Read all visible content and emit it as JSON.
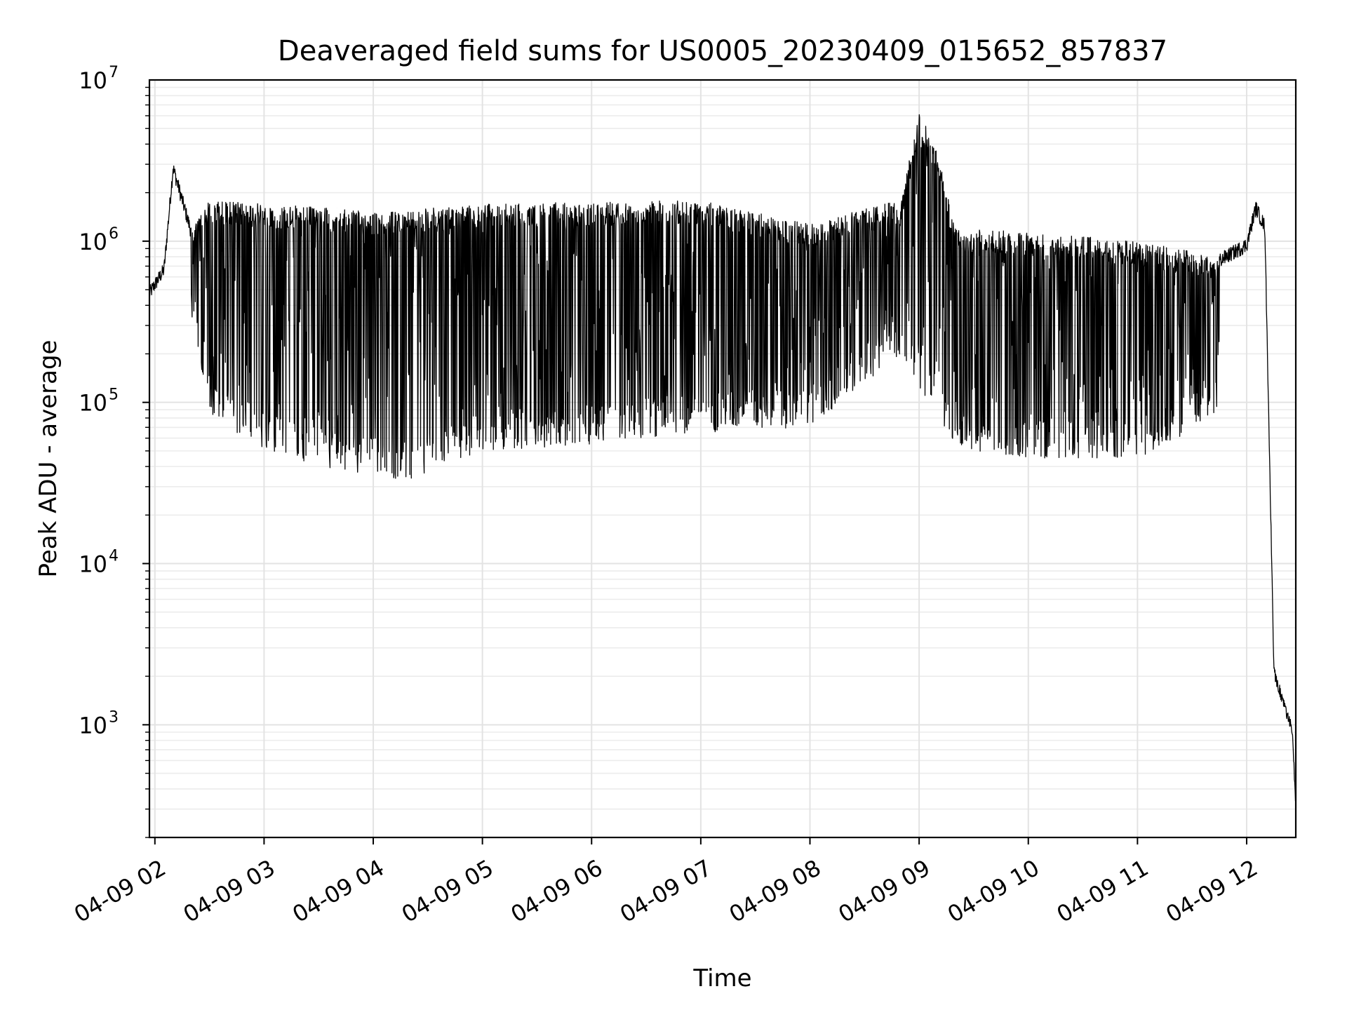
{
  "chart_data": {
    "type": "line",
    "title": "Deaveraged field sums for US0005_20230409_015652_857837",
    "xlabel": "Time",
    "ylabel": "Peak ADU - average",
    "yscale": "log",
    "ylim": [
      200,
      10000000
    ],
    "xlim": [
      "04-09 01:57",
      "04-09 12:27"
    ],
    "grid": true,
    "x_tick_labels": [
      "04-09 02",
      "04-09 03",
      "04-09 04",
      "04-09 05",
      "04-09 06",
      "04-09 07",
      "04-09 08",
      "04-09 09",
      "04-09 10",
      "04-09 11",
      "04-09 12"
    ],
    "y_tick_exponents": [
      "3",
      "4",
      "5",
      "6",
      "7"
    ],
    "y_tick_base": "10",
    "line_color": "#000000",
    "series": [
      {
        "values_description_points": [
          [
            "04-09 01:57",
            500000
          ],
          [
            "04-09 02:05",
            700000
          ],
          [
            "04-09 02:10",
            3000000
          ],
          [
            "04-09 02:20",
            1200000
          ],
          [
            "04-09 02:30",
            1800000
          ],
          [
            "04-09 03:00",
            1700000
          ],
          [
            "04-09 03:40",
            1600000
          ],
          [
            "04-09 04:00",
            1500000
          ],
          [
            "04-09 05:00",
            1700000
          ],
          [
            "04-09 06:00",
            1750000
          ],
          [
            "04-09 07:00",
            1800000
          ],
          [
            "04-09 07:30",
            1500000
          ],
          [
            "04-09 08:00",
            1300000
          ],
          [
            "04-09 08:50",
            1800000
          ],
          [
            "04-09 09:00",
            6500000
          ],
          [
            "04-09 09:10",
            3500000
          ],
          [
            "04-09 09:20",
            1200000
          ],
          [
            "04-09 10:00",
            1150000
          ],
          [
            "04-09 11:00",
            1000000
          ],
          [
            "04-09 11:45",
            800000
          ],
          [
            "04-09 12:00",
            1000000
          ],
          [
            "04-09 12:05",
            1700000
          ],
          [
            "04-09 12:10",
            1300000
          ],
          [
            "04-09 12:15",
            2300
          ],
          [
            "04-09 12:25",
            1000
          ],
          [
            "04-09 12:27",
            350
          ]
        ],
        "minima_envelope": [
          [
            "04-09 02:20",
            300000
          ],
          [
            "04-09 02:30",
            80000
          ],
          [
            "04-09 03:00",
            50000
          ],
          [
            "04-09 03:40",
            38000
          ],
          [
            "04-09 04:20",
            32000
          ],
          [
            "04-09 05:00",
            50000
          ],
          [
            "04-09 06:00",
            55000
          ],
          [
            "04-09 07:00",
            65000
          ],
          [
            "04-09 08:00",
            70000
          ],
          [
            "04-09 08:50",
            200000
          ],
          [
            "04-09 09:20",
            50000
          ],
          [
            "04-09 10:00",
            45000
          ],
          [
            "04-09 11:00",
            45000
          ],
          [
            "04-09 11:45",
            80000
          ]
        ]
      }
    ]
  }
}
